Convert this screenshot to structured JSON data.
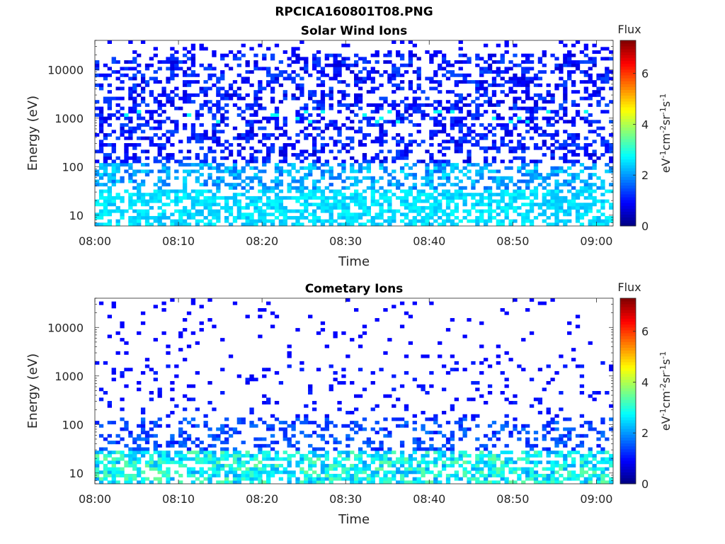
{
  "figure": {
    "title": "RPCICA160801T08.PNG"
  },
  "chart_data": [
    {
      "type": "heatmap",
      "title": "Solar Wind Ions",
      "xlabel": "Time",
      "ylabel": "Energy (eV)",
      "x_tick_labels": [
        "08:00",
        "08:10",
        "08:20",
        "08:30",
        "08:40",
        "08:50",
        "09:00"
      ],
      "xlim": [
        "08:00",
        "09:02"
      ],
      "y_scale": "log",
      "y_tick_labels": [
        "10",
        "100",
        "1000",
        "10000"
      ],
      "ylim": [
        6,
        40000
      ],
      "colorbar": {
        "label_top": "Flux",
        "units": "eV-1cm-2sr-1s-1",
        "ticks": [
          "0",
          "2",
          "4",
          "6"
        ],
        "range": [
          0,
          7.3
        ],
        "colormap": "jet"
      },
      "description_of_values": {
        "above_100_eV": "sparse flux, mostly 0.5-1.5 (blue)",
        "around_1000_eV": "occasional cells near 2.5-3 (cyan/green)",
        "below_100_eV": "flux ~2-3 (cyan), dense below 30 eV"
      }
    },
    {
      "type": "heatmap",
      "title": "Cometary Ions",
      "xlabel": "Time",
      "ylabel": "Energy (eV)",
      "x_tick_labels": [
        "08:00",
        "08:10",
        "08:20",
        "08:30",
        "08:40",
        "08:50",
        "09:00"
      ],
      "xlim": [
        "08:00",
        "09:02"
      ],
      "y_scale": "log",
      "y_tick_labels": [
        "10",
        "100",
        "1000",
        "10000"
      ],
      "ylim": [
        6,
        40000
      ],
      "colorbar": {
        "label_top": "Flux",
        "units": "eV-1cm-2sr-1s-1",
        "ticks": [
          "0",
          "2",
          "4",
          "6"
        ],
        "range": [
          0,
          7.3
        ],
        "colormap": "jet"
      },
      "description_of_values": {
        "above_100_eV": "very sparse, flux ~1 (blue)",
        "30_to_150_eV": "moderate density, flux ~1-1.5",
        "below_30_eV": "dense band, flux ~2-3.5 (cyan/green)"
      }
    }
  ]
}
